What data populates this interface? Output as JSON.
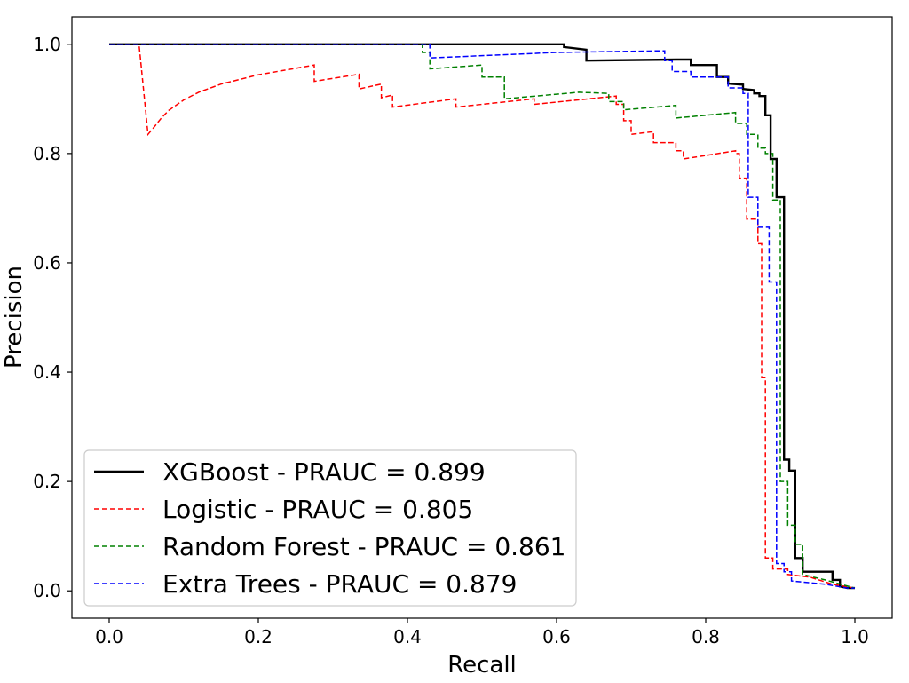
{
  "chart_data": {
    "type": "line",
    "title": "",
    "xlabel": "Recall",
    "ylabel": "Precision",
    "xlim": [
      -0.05,
      1.05
    ],
    "ylim": [
      -0.05,
      1.05
    ],
    "xticks": [
      0.0,
      0.2,
      0.4,
      0.6,
      0.8,
      1.0
    ],
    "yticks": [
      0.0,
      0.2,
      0.4,
      0.6,
      0.8,
      1.0
    ],
    "xtick_labels": [
      "0.0",
      "0.2",
      "0.4",
      "0.6",
      "0.8",
      "1.0"
    ],
    "ytick_labels": [
      "0.0",
      "0.2",
      "0.4",
      "0.6",
      "0.8",
      "1.0"
    ],
    "grid": false,
    "legend_position": "lower-left",
    "series": [
      {
        "name": "XGBoost - PRAUC = 0.899",
        "color": "#000000",
        "style": "solid",
        "points": [
          [
            0.0,
            1.0
          ],
          [
            0.61,
            1.0
          ],
          [
            0.61,
            0.995
          ],
          [
            0.64,
            0.99
          ],
          [
            0.64,
            0.97
          ],
          [
            0.76,
            0.972
          ],
          [
            0.78,
            0.972
          ],
          [
            0.78,
            0.962
          ],
          [
            0.815,
            0.962
          ],
          [
            0.815,
            0.94
          ],
          [
            0.83,
            0.94
          ],
          [
            0.83,
            0.928
          ],
          [
            0.85,
            0.926
          ],
          [
            0.85,
            0.918
          ],
          [
            0.865,
            0.916
          ],
          [
            0.865,
            0.91
          ],
          [
            0.872,
            0.91
          ],
          [
            0.872,
            0.905
          ],
          [
            0.88,
            0.905
          ],
          [
            0.88,
            0.87
          ],
          [
            0.887,
            0.87
          ],
          [
            0.887,
            0.79
          ],
          [
            0.895,
            0.79
          ],
          [
            0.895,
            0.72
          ],
          [
            0.905,
            0.72
          ],
          [
            0.905,
            0.24
          ],
          [
            0.912,
            0.24
          ],
          [
            0.912,
            0.22
          ],
          [
            0.92,
            0.22
          ],
          [
            0.92,
            0.06
          ],
          [
            0.93,
            0.06
          ],
          [
            0.93,
            0.035
          ],
          [
            0.97,
            0.035
          ],
          [
            0.97,
            0.02
          ],
          [
            0.98,
            0.02
          ],
          [
            0.98,
            0.008
          ],
          [
            0.99,
            0.005
          ],
          [
            1.0,
            0.005
          ]
        ]
      },
      {
        "name": "Logistic - PRAUC = 0.805",
        "color": "#ff0000",
        "style": "dashed",
        "points": [
          [
            0.0,
            1.0
          ],
          [
            0.04,
            1.0
          ],
          [
            0.052,
            0.835
          ],
          [
            0.06,
            0.848
          ],
          [
            0.07,
            0.865
          ],
          [
            0.08,
            0.879
          ],
          [
            0.1,
            0.898
          ],
          [
            0.12,
            0.912
          ],
          [
            0.15,
            0.927
          ],
          [
            0.2,
            0.944
          ],
          [
            0.25,
            0.956
          ],
          [
            0.275,
            0.962
          ],
          [
            0.275,
            0.932
          ],
          [
            0.335,
            0.945
          ],
          [
            0.335,
            0.918
          ],
          [
            0.365,
            0.927
          ],
          [
            0.365,
            0.902
          ],
          [
            0.38,
            0.907
          ],
          [
            0.38,
            0.885
          ],
          [
            0.465,
            0.9
          ],
          [
            0.465,
            0.885
          ],
          [
            0.57,
            0.9
          ],
          [
            0.57,
            0.89
          ],
          [
            0.68,
            0.905
          ],
          [
            0.68,
            0.89
          ],
          [
            0.69,
            0.89
          ],
          [
            0.69,
            0.86
          ],
          [
            0.7,
            0.86
          ],
          [
            0.7,
            0.835
          ],
          [
            0.73,
            0.84
          ],
          [
            0.73,
            0.82
          ],
          [
            0.76,
            0.82
          ],
          [
            0.76,
            0.805
          ],
          [
            0.77,
            0.805
          ],
          [
            0.77,
            0.79
          ],
          [
            0.84,
            0.805
          ],
          [
            0.84,
            0.8
          ],
          [
            0.845,
            0.8
          ],
          [
            0.845,
            0.755
          ],
          [
            0.855,
            0.755
          ],
          [
            0.855,
            0.68
          ],
          [
            0.87,
            0.68
          ],
          [
            0.87,
            0.635
          ],
          [
            0.875,
            0.635
          ],
          [
            0.875,
            0.39
          ],
          [
            0.88,
            0.39
          ],
          [
            0.88,
            0.06
          ],
          [
            0.89,
            0.06
          ],
          [
            0.89,
            0.04
          ],
          [
            0.91,
            0.04
          ],
          [
            0.91,
            0.03
          ],
          [
            0.94,
            0.025
          ],
          [
            0.97,
            0.012
          ],
          [
            1.0,
            0.005
          ]
        ]
      },
      {
        "name": "Random Forest - PRAUC = 0.861",
        "color": "#008000",
        "style": "dashed",
        "points": [
          [
            0.0,
            1.0
          ],
          [
            0.42,
            1.0
          ],
          [
            0.42,
            0.985
          ],
          [
            0.43,
            0.985
          ],
          [
            0.43,
            0.955
          ],
          [
            0.5,
            0.962
          ],
          [
            0.5,
            0.94
          ],
          [
            0.53,
            0.94
          ],
          [
            0.53,
            0.9
          ],
          [
            0.63,
            0.912
          ],
          [
            0.67,
            0.91
          ],
          [
            0.67,
            0.895
          ],
          [
            0.69,
            0.895
          ],
          [
            0.69,
            0.88
          ],
          [
            0.76,
            0.888
          ],
          [
            0.76,
            0.865
          ],
          [
            0.84,
            0.875
          ],
          [
            0.84,
            0.855
          ],
          [
            0.855,
            0.855
          ],
          [
            0.855,
            0.835
          ],
          [
            0.87,
            0.835
          ],
          [
            0.87,
            0.81
          ],
          [
            0.88,
            0.81
          ],
          [
            0.88,
            0.8
          ],
          [
            0.89,
            0.8
          ],
          [
            0.89,
            0.715
          ],
          [
            0.9,
            0.715
          ],
          [
            0.9,
            0.2
          ],
          [
            0.91,
            0.2
          ],
          [
            0.91,
            0.12
          ],
          [
            0.92,
            0.12
          ],
          [
            0.92,
            0.085
          ],
          [
            0.93,
            0.085
          ],
          [
            0.93,
            0.03
          ],
          [
            0.96,
            0.02
          ],
          [
            1.0,
            0.005
          ]
        ]
      },
      {
        "name": "Extra Trees - PRAUC = 0.879",
        "color": "#0000ff",
        "style": "dashed",
        "points": [
          [
            0.0,
            1.0
          ],
          [
            0.43,
            1.0
          ],
          [
            0.43,
            0.975
          ],
          [
            0.6,
            0.985
          ],
          [
            0.74,
            0.988
          ],
          [
            0.745,
            0.988
          ],
          [
            0.745,
            0.97
          ],
          [
            0.755,
            0.97
          ],
          [
            0.755,
            0.95
          ],
          [
            0.78,
            0.95
          ],
          [
            0.78,
            0.94
          ],
          [
            0.83,
            0.94
          ],
          [
            0.83,
            0.92
          ],
          [
            0.85,
            0.92
          ],
          [
            0.85,
            0.91
          ],
          [
            0.857,
            0.91
          ],
          [
            0.857,
            0.72
          ],
          [
            0.87,
            0.72
          ],
          [
            0.87,
            0.665
          ],
          [
            0.885,
            0.665
          ],
          [
            0.885,
            0.565
          ],
          [
            0.895,
            0.565
          ],
          [
            0.895,
            0.05
          ],
          [
            0.905,
            0.05
          ],
          [
            0.905,
            0.035
          ],
          [
            0.915,
            0.035
          ],
          [
            0.915,
            0.018
          ],
          [
            0.96,
            0.012
          ],
          [
            0.99,
            0.005
          ],
          [
            1.0,
            0.005
          ]
        ]
      }
    ]
  }
}
